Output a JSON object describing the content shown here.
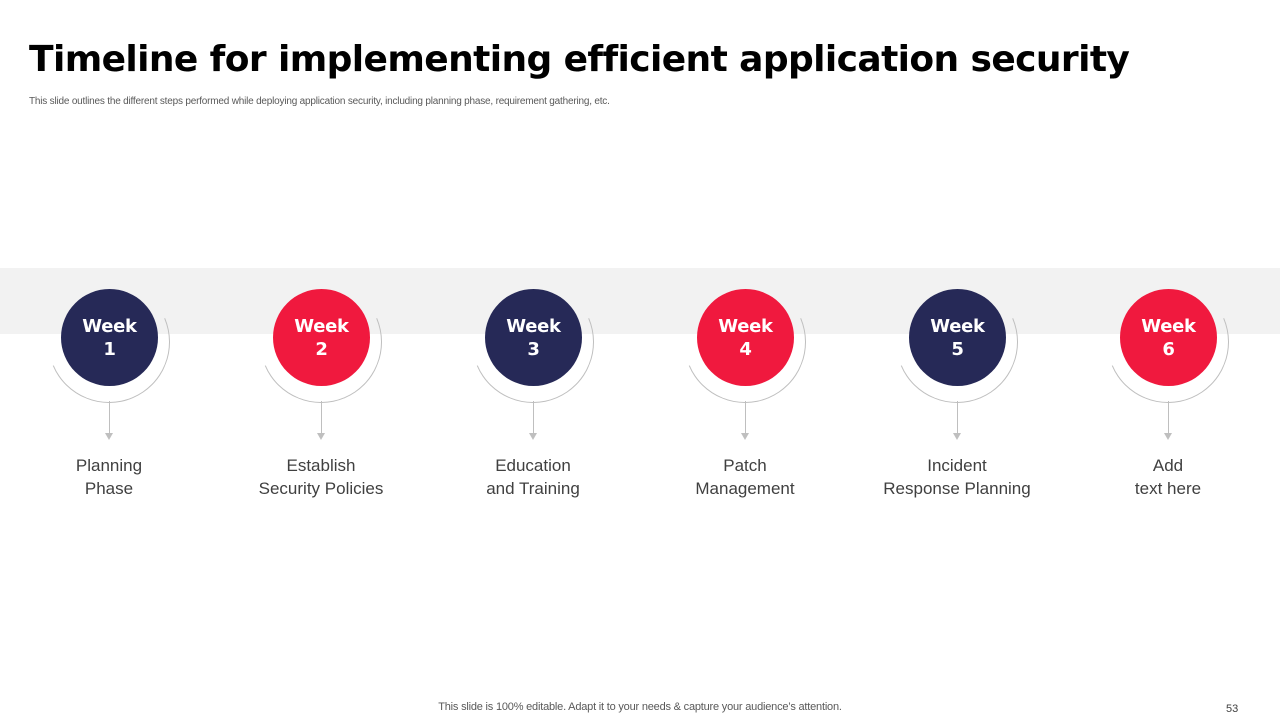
{
  "slide": {
    "title": "Timeline for implementing efficient application security",
    "subtitle": "This slide outlines the different steps performed while deploying application security, including planning phase, requirement gathering, etc.",
    "footer_note": "This slide is 100% editable. Adapt it to your needs & capture your audience’s attention.",
    "page_number": "53"
  },
  "colors": {
    "navy": "#262957",
    "red": "#f0193e",
    "band": "#f2f2f2"
  },
  "steps": [
    {
      "week_label": "Week",
      "week_number": "1",
      "color": "navy",
      "label_line1": "Planning",
      "label_line2": "Phase"
    },
    {
      "week_label": "Week",
      "week_number": "2",
      "color": "red",
      "label_line1": "Establish",
      "label_line2": "Security Policies"
    },
    {
      "week_label": "Week",
      "week_number": "3",
      "color": "navy",
      "label_line1": "Education",
      "label_line2": "and Training"
    },
    {
      "week_label": "Week",
      "week_number": "4",
      "color": "red",
      "label_line1": "Patch",
      "label_line2": "Management"
    },
    {
      "week_label": "Week",
      "week_number": "5",
      "color": "navy",
      "label_line1": "Incident",
      "label_line2": "Response Planning"
    },
    {
      "week_label": "Week",
      "week_number": "6",
      "color": "red",
      "label_line1": "Add",
      "label_line2": "text here"
    }
  ]
}
